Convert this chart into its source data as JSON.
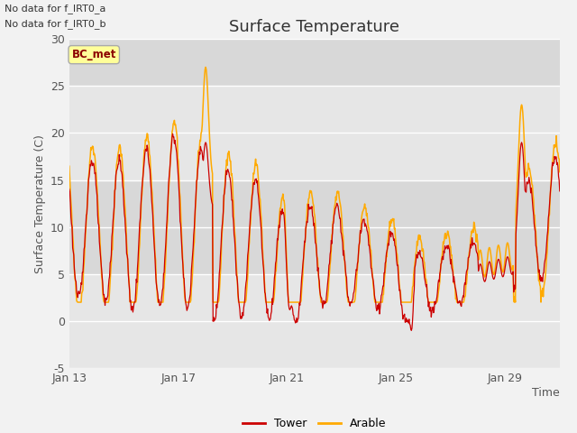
{
  "title": "Surface Temperature",
  "xlabel": "Time",
  "ylabel": "Surface Temperature (C)",
  "ylim": [
    -5,
    30
  ],
  "x_tick_labels": [
    "Jan 13",
    "Jan 17",
    "Jan 21",
    "Jan 25",
    "Jan 29"
  ],
  "fig_bg_color": "#f2f2f2",
  "plot_bg_color": "#f2f2f2",
  "tower_color": "#cc0000",
  "arable_color": "#ffaa00",
  "title_fontsize": 13,
  "axis_label_fontsize": 9,
  "tick_fontsize": 9,
  "note_text1": "No data for f_IRT0_a",
  "note_text2": "No data for f_IRT0_b",
  "bc_met_label": "BC_met",
  "legend_tower": "Tower",
  "legend_arable": "Arable",
  "band_colors": [
    "#e8e8e8",
    "#dadada",
    "#e8e8e8",
    "#dadada",
    "#e8e8e8",
    "#dadada",
    "#e8e8e8"
  ],
  "grid_color": "#ffffff"
}
